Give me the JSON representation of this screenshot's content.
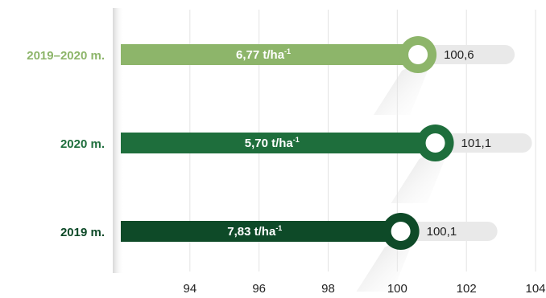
{
  "chart_data": {
    "type": "bar",
    "orientation": "horizontal",
    "categories": [
      "2019–2020 m.",
      "2020 m.",
      "2019 m."
    ],
    "values": [
      100.6,
      101.1,
      100.1
    ],
    "value_labels": [
      "100,6",
      "101,1",
      "100,1"
    ],
    "bar_labels": [
      {
        "main": "6,77 t/ha",
        "sup": "-1"
      },
      {
        "main": "5,70 t/ha",
        "sup": "-1"
      },
      {
        "main": "7,83 t/ha",
        "sup": "-1"
      }
    ],
    "colors": [
      "#8db56a",
      "#1e6e3c",
      "#0e4a28"
    ],
    "category_label_colors": [
      "#8db56a",
      "#1e6e3c",
      "#0e4a28"
    ],
    "xlim": [
      92,
      104
    ],
    "xticks": [
      94,
      96,
      98,
      100,
      102,
      104
    ],
    "grid": true,
    "legend": "none"
  }
}
